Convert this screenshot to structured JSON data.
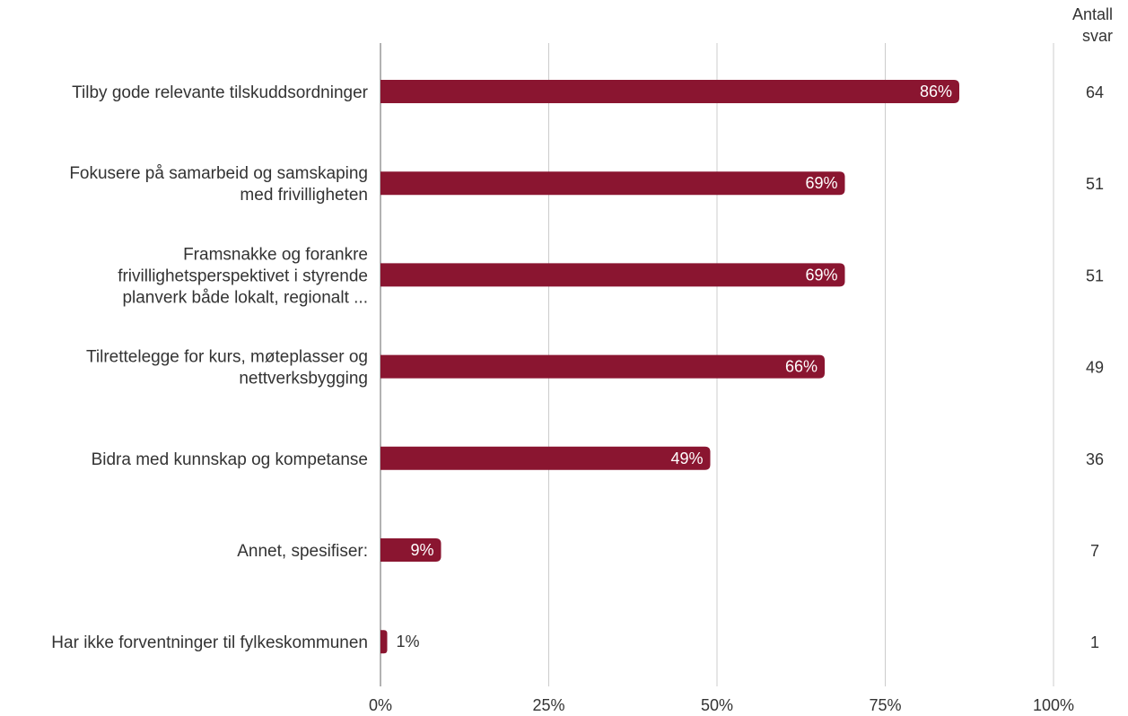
{
  "chart_data": {
    "type": "bar",
    "orientation": "horizontal",
    "categories": [
      [
        "Tilby gode relevante tilskuddsordninger"
      ],
      [
        "Fokusere på samarbeid og samskaping",
        "med frivilligheten"
      ],
      [
        "Framsnakke og forankre",
        "frivillighetsperspektivet i styrende",
        "planverk både lokalt, regionalt ..."
      ],
      [
        "Tilrettelegge for kurs, møteplasser og",
        "nettverksbygging"
      ],
      [
        "Bidra med kunnskap og kompetanse"
      ],
      [
        "Annet, spesifiser:"
      ],
      [
        "Har ikke forventninger til fylkeskommunen"
      ]
    ],
    "values": [
      86,
      69,
      69,
      66,
      49,
      9,
      1
    ],
    "value_labels": [
      "86%",
      "69%",
      "69%",
      "66%",
      "49%",
      "9%",
      "1%"
    ],
    "counts": [
      64,
      51,
      51,
      49,
      36,
      7,
      1
    ],
    "count_header": [
      "Antall",
      "svar"
    ],
    "xlim": [
      0,
      100
    ],
    "x_ticks": [
      0,
      25,
      50,
      75,
      100
    ],
    "x_tick_labels": [
      "0%",
      "25%",
      "50%",
      "75%",
      "100%"
    ],
    "grid": true,
    "bar_color": "#8a1530",
    "grid_color": "#cccccc",
    "axis_color": "#999999"
  }
}
